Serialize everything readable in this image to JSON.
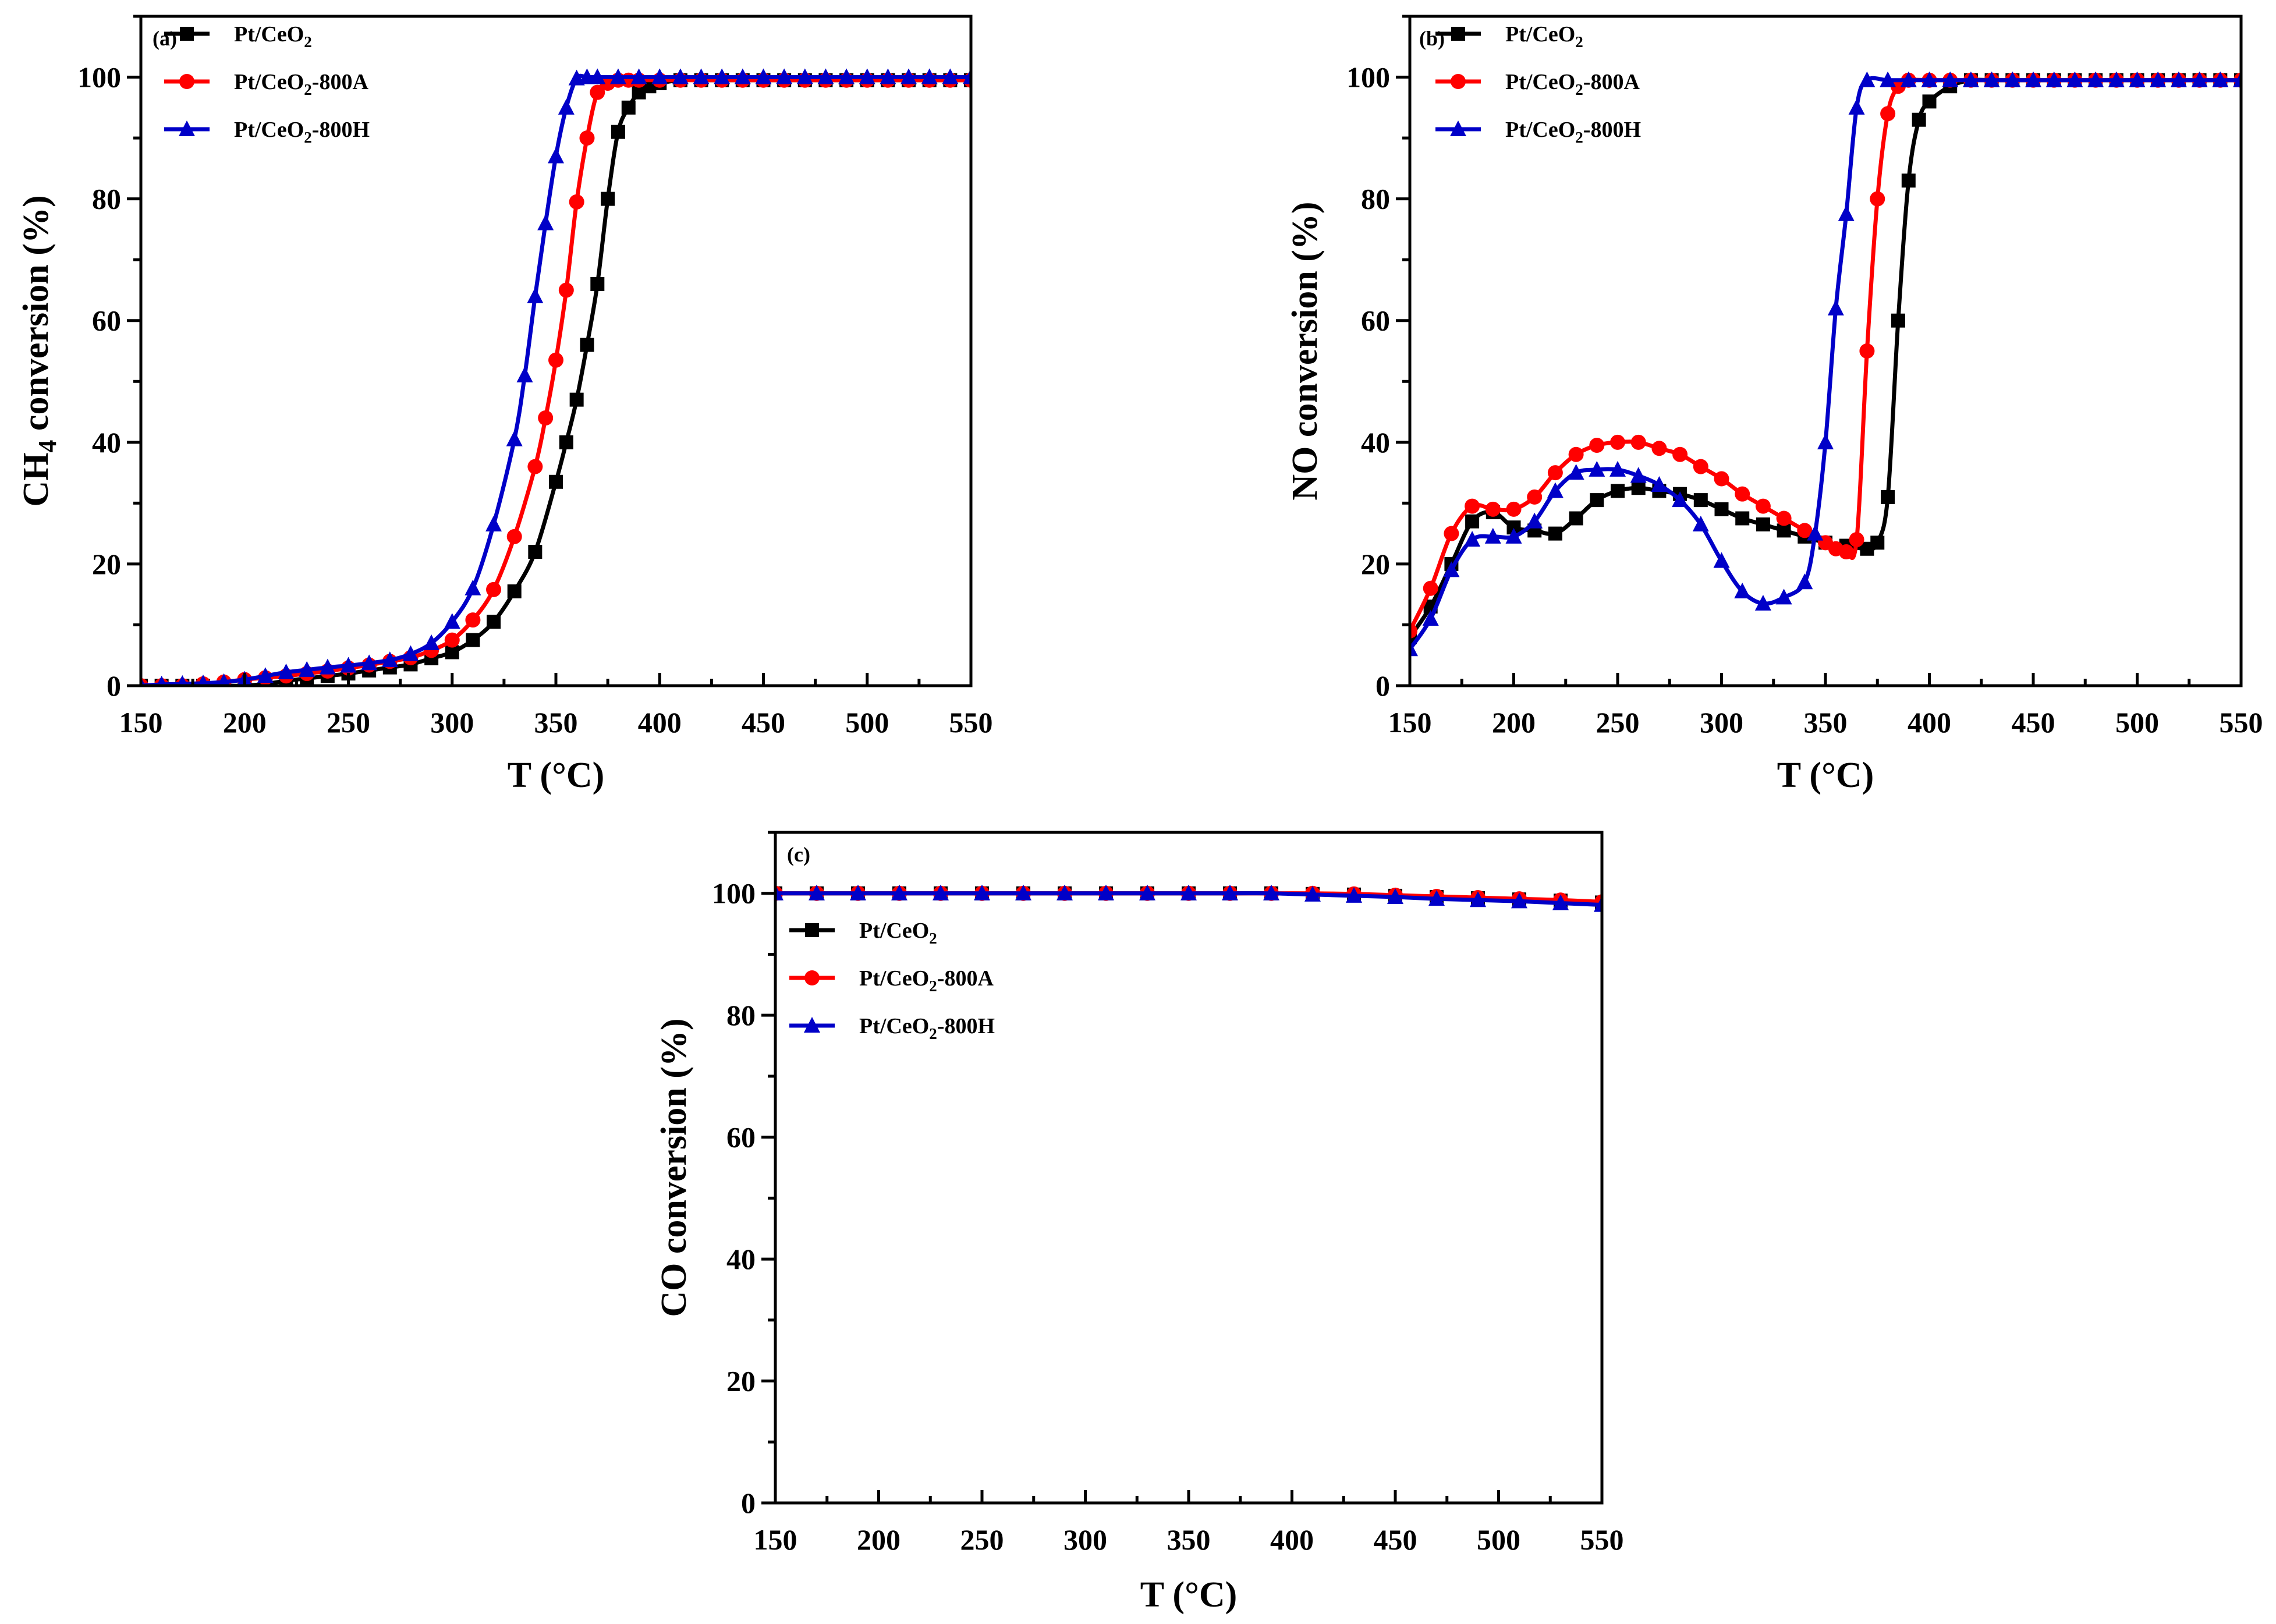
{
  "chart_data": [
    {
      "id": "a",
      "type": "line",
      "panel_label": "(a)",
      "xlabel": "T (°C)",
      "ylabel": "CH4 conversion (%)",
      "xlim": [
        150,
        550
      ],
      "ylim": [
        0,
        110
      ],
      "xticks": [
        150,
        200,
        250,
        300,
        350,
        400,
        450,
        500,
        550
      ],
      "yticks": [
        0,
        20,
        40,
        60,
        80,
        100
      ],
      "legend_position": "top-left",
      "series": [
        {
          "name": "Pt/CeO2",
          "label_main": "Pt/CeO",
          "label_sub": "2",
          "label_tail": "",
          "color": "#000000",
          "marker": "square",
          "x": [
            150,
            160,
            170,
            180,
            190,
            200,
            210,
            220,
            230,
            240,
            250,
            260,
            270,
            280,
            290,
            300,
            310,
            320,
            330,
            340,
            350,
            355,
            360,
            365,
            370,
            375,
            380,
            385,
            390,
            395,
            400,
            410,
            420,
            430,
            440,
            450,
            460,
            470,
            480,
            490,
            500,
            510,
            520,
            530,
            540,
            550
          ],
          "y": [
            0,
            0,
            0,
            0,
            0,
            0,
            0.3,
            0.8,
            1.2,
            1.6,
            2.0,
            2.5,
            3.0,
            3.5,
            4.5,
            5.5,
            7.5,
            10.5,
            15.5,
            22,
            33.5,
            40,
            47,
            56,
            66,
            80,
            91,
            95,
            97.5,
            98.5,
            99,
            99.5,
            99.5,
            99.5,
            99.5,
            99.5,
            99.5,
            99.5,
            99.5,
            99.5,
            99.5,
            99.5,
            99.5,
            99.5,
            99.5,
            99.5
          ]
        },
        {
          "name": "Pt/CeO2-800A",
          "label_main": "Pt/CeO",
          "label_sub": "2",
          "label_tail": "-800A",
          "color": "#ff0000",
          "marker": "circle",
          "x": [
            150,
            160,
            170,
            180,
            190,
            200,
            210,
            220,
            230,
            240,
            250,
            260,
            270,
            280,
            290,
            300,
            310,
            320,
            330,
            340,
            345,
            350,
            355,
            360,
            365,
            370,
            375,
            380,
            385,
            390,
            400,
            410,
            420,
            430,
            440,
            450,
            460,
            470,
            480,
            490,
            500,
            510,
            520,
            530,
            540,
            550
          ],
          "y": [
            0,
            0,
            0,
            0.3,
            0.6,
            1.0,
            1.3,
            1.6,
            2.0,
            2.4,
            2.9,
            3.4,
            4.0,
            4.6,
            5.8,
            7.5,
            10.8,
            15.8,
            24.5,
            36,
            44,
            53.5,
            65,
            79.5,
            90,
            97.5,
            99,
            99.5,
            99.5,
            99.5,
            99.5,
            99.5,
            99.5,
            99.5,
            99.5,
            99.5,
            99.5,
            99.5,
            99.5,
            99.5,
            99.5,
            99.5,
            99.5,
            99.5,
            99.5,
            99.5
          ]
        },
        {
          "name": "Pt/CeO2-800H",
          "label_main": "Pt/CeO",
          "label_sub": "2",
          "label_tail": "-800H",
          "color": "#0000c8",
          "marker": "triangle",
          "x": [
            150,
            160,
            170,
            180,
            190,
            200,
            210,
            220,
            230,
            240,
            250,
            260,
            270,
            280,
            290,
            300,
            310,
            320,
            330,
            335,
            340,
            345,
            350,
            355,
            360,
            365,
            370,
            380,
            390,
            400,
            410,
            420,
            430,
            440,
            450,
            460,
            470,
            480,
            490,
            500,
            510,
            520,
            530,
            540,
            550
          ],
          "y": [
            0,
            0.2,
            0.3,
            0.4,
            0.6,
            1.0,
            1.6,
            2.2,
            2.6,
            3.0,
            3.3,
            3.7,
            4.2,
            5.2,
            7,
            10.5,
            16,
            26.5,
            40.5,
            51,
            64,
            76,
            87,
            95,
            99.8,
            100,
            100,
            100,
            100,
            100,
            100,
            100,
            100,
            100,
            100,
            100,
            100,
            100,
            100,
            100,
            100,
            100,
            100,
            100,
            100
          ]
        }
      ]
    },
    {
      "id": "b",
      "type": "line",
      "panel_label": "(b)",
      "xlabel": "T (°C)",
      "ylabel": "NO conversion (%)",
      "xlim": [
        150,
        550
      ],
      "ylim": [
        0,
        110
      ],
      "xticks": [
        150,
        200,
        250,
        300,
        350,
        400,
        450,
        500,
        550
      ],
      "yticks": [
        0,
        20,
        40,
        60,
        80,
        100
      ],
      "legend_position": "top-left",
      "series": [
        {
          "name": "Pt/CeO2",
          "label_main": "Pt/CeO",
          "label_sub": "2",
          "label_tail": "",
          "color": "#000000",
          "marker": "square",
          "x": [
            150,
            160,
            170,
            180,
            190,
            200,
            210,
            220,
            230,
            240,
            250,
            260,
            270,
            280,
            290,
            300,
            310,
            320,
            330,
            340,
            350,
            360,
            370,
            375,
            380,
            385,
            390,
            395,
            400,
            410,
            420,
            430,
            440,
            450,
            460,
            470,
            480,
            490,
            500,
            510,
            520,
            530,
            540,
            550
          ],
          "y": [
            8,
            13,
            20,
            27,
            28.5,
            26,
            25.5,
            25,
            27.5,
            30.5,
            32,
            32.5,
            32,
            31.5,
            30.5,
            29,
            27.5,
            26.5,
            25.5,
            24.5,
            23.5,
            23,
            22.5,
            23.5,
            31,
            60,
            83,
            93,
            96,
            98.5,
            99.5,
            99.5,
            99.5,
            99.5,
            99.5,
            99.5,
            99.5,
            99.5,
            99.5,
            99.5,
            99.5,
            99.5,
            99.5,
            99.5
          ]
        },
        {
          "name": "Pt/CeO2-800A",
          "label_main": "Pt/CeO",
          "label_sub": "2",
          "label_tail": "-800A",
          "color": "#ff0000",
          "marker": "circle",
          "x": [
            150,
            160,
            170,
            180,
            190,
            200,
            210,
            220,
            230,
            240,
            250,
            260,
            270,
            280,
            290,
            300,
            310,
            320,
            330,
            340,
            350,
            355,
            360,
            365,
            370,
            375,
            380,
            385,
            390,
            400,
            410,
            420,
            430,
            440,
            450,
            460,
            470,
            480,
            490,
            500,
            510,
            520,
            530,
            540,
            550
          ],
          "y": [
            9,
            16,
            25,
            29.5,
            29,
            29,
            31,
            35,
            38,
            39.5,
            40,
            40,
            39,
            38,
            36,
            34,
            31.5,
            29.5,
            27.5,
            25.5,
            23.5,
            22.5,
            22,
            24,
            55,
            80,
            94,
            98.5,
            99.5,
            99.5,
            99.5,
            99.5,
            99.5,
            99.5,
            99.5,
            99.5,
            99.5,
            99.5,
            99.5,
            99.5,
            99.5,
            99.5,
            99.5,
            99.5,
            99.5
          ]
        },
        {
          "name": "Pt/CeO2-800H",
          "label_main": "Pt/CeO",
          "label_sub": "2",
          "label_tail": "-800H",
          "color": "#0000c8",
          "marker": "triangle",
          "x": [
            150,
            160,
            170,
            180,
            190,
            200,
            210,
            220,
            230,
            240,
            250,
            260,
            270,
            280,
            290,
            300,
            310,
            320,
            330,
            340,
            345,
            350,
            355,
            360,
            365,
            370,
            380,
            390,
            400,
            410,
            420,
            430,
            440,
            450,
            460,
            470,
            480,
            490,
            500,
            510,
            520,
            530,
            540,
            550
          ],
          "y": [
            6,
            11,
            19,
            24,
            24.5,
            24.5,
            27,
            32,
            35,
            35.5,
            35.5,
            34.5,
            33,
            30.5,
            26.5,
            20.5,
            15.5,
            13.5,
            14.5,
            17,
            25,
            40,
            62,
            77.5,
            95,
            99.5,
            99.5,
            99.5,
            99.5,
            99.5,
            99.5,
            99.5,
            99.5,
            99.5,
            99.5,
            99.5,
            99.5,
            99.5,
            99.5,
            99.5,
            99.5,
            99.5,
            99.5,
            99.5
          ]
        }
      ]
    },
    {
      "id": "c",
      "type": "line",
      "panel_label": "(c)",
      "xlabel": "T (°C)",
      "ylabel": "CO conversion (%)",
      "xlim": [
        150,
        550
      ],
      "ylim": [
        0,
        110
      ],
      "xticks": [
        150,
        200,
        250,
        300,
        350,
        400,
        450,
        500,
        550
      ],
      "yticks": [
        0,
        20,
        40,
        60,
        80,
        100
      ],
      "legend_position": "upper-left, below the curves",
      "series": [
        {
          "name": "Pt/CeO2",
          "label_main": "Pt/CeO",
          "label_sub": "2",
          "label_tail": "",
          "color": "#000000",
          "marker": "square",
          "x": [
            150,
            170,
            190,
            210,
            230,
            250,
            270,
            290,
            310,
            330,
            350,
            370,
            390,
            410,
            430,
            450,
            470,
            490,
            510,
            530,
            550
          ],
          "y": [
            100,
            100,
            100,
            100,
            100,
            100,
            100,
            100,
            100,
            100,
            100,
            100,
            100,
            99.9,
            99.8,
            99.6,
            99.4,
            99.2,
            99,
            98.8,
            98.5
          ]
        },
        {
          "name": "Pt/CeO2-800A",
          "label_main": "Pt/CeO",
          "label_sub": "2",
          "label_tail": "-800A",
          "color": "#ff0000",
          "marker": "circle",
          "x": [
            150,
            170,
            190,
            210,
            230,
            250,
            270,
            290,
            310,
            330,
            350,
            370,
            390,
            410,
            430,
            450,
            470,
            490,
            510,
            530,
            550
          ],
          "y": [
            100,
            100,
            100,
            100,
            100,
            100,
            100,
            100,
            100,
            100,
            100,
            100,
            100,
            100,
            99.9,
            99.7,
            99.5,
            99.3,
            99.1,
            98.9,
            98.6
          ]
        },
        {
          "name": "Pt/CeO2-800H",
          "label_main": "Pt/CeO",
          "label_sub": "2",
          "label_tail": "-800H",
          "color": "#0000c8",
          "marker": "triangle",
          "x": [
            150,
            170,
            190,
            210,
            230,
            250,
            270,
            290,
            310,
            330,
            350,
            370,
            390,
            410,
            430,
            450,
            470,
            490,
            510,
            530,
            550
          ],
          "y": [
            100,
            100,
            100,
            100,
            100,
            100,
            100,
            100,
            100,
            100,
            100,
            100,
            100,
            99.8,
            99.6,
            99.4,
            99.1,
            98.9,
            98.7,
            98.4,
            98.1
          ]
        }
      ]
    }
  ]
}
